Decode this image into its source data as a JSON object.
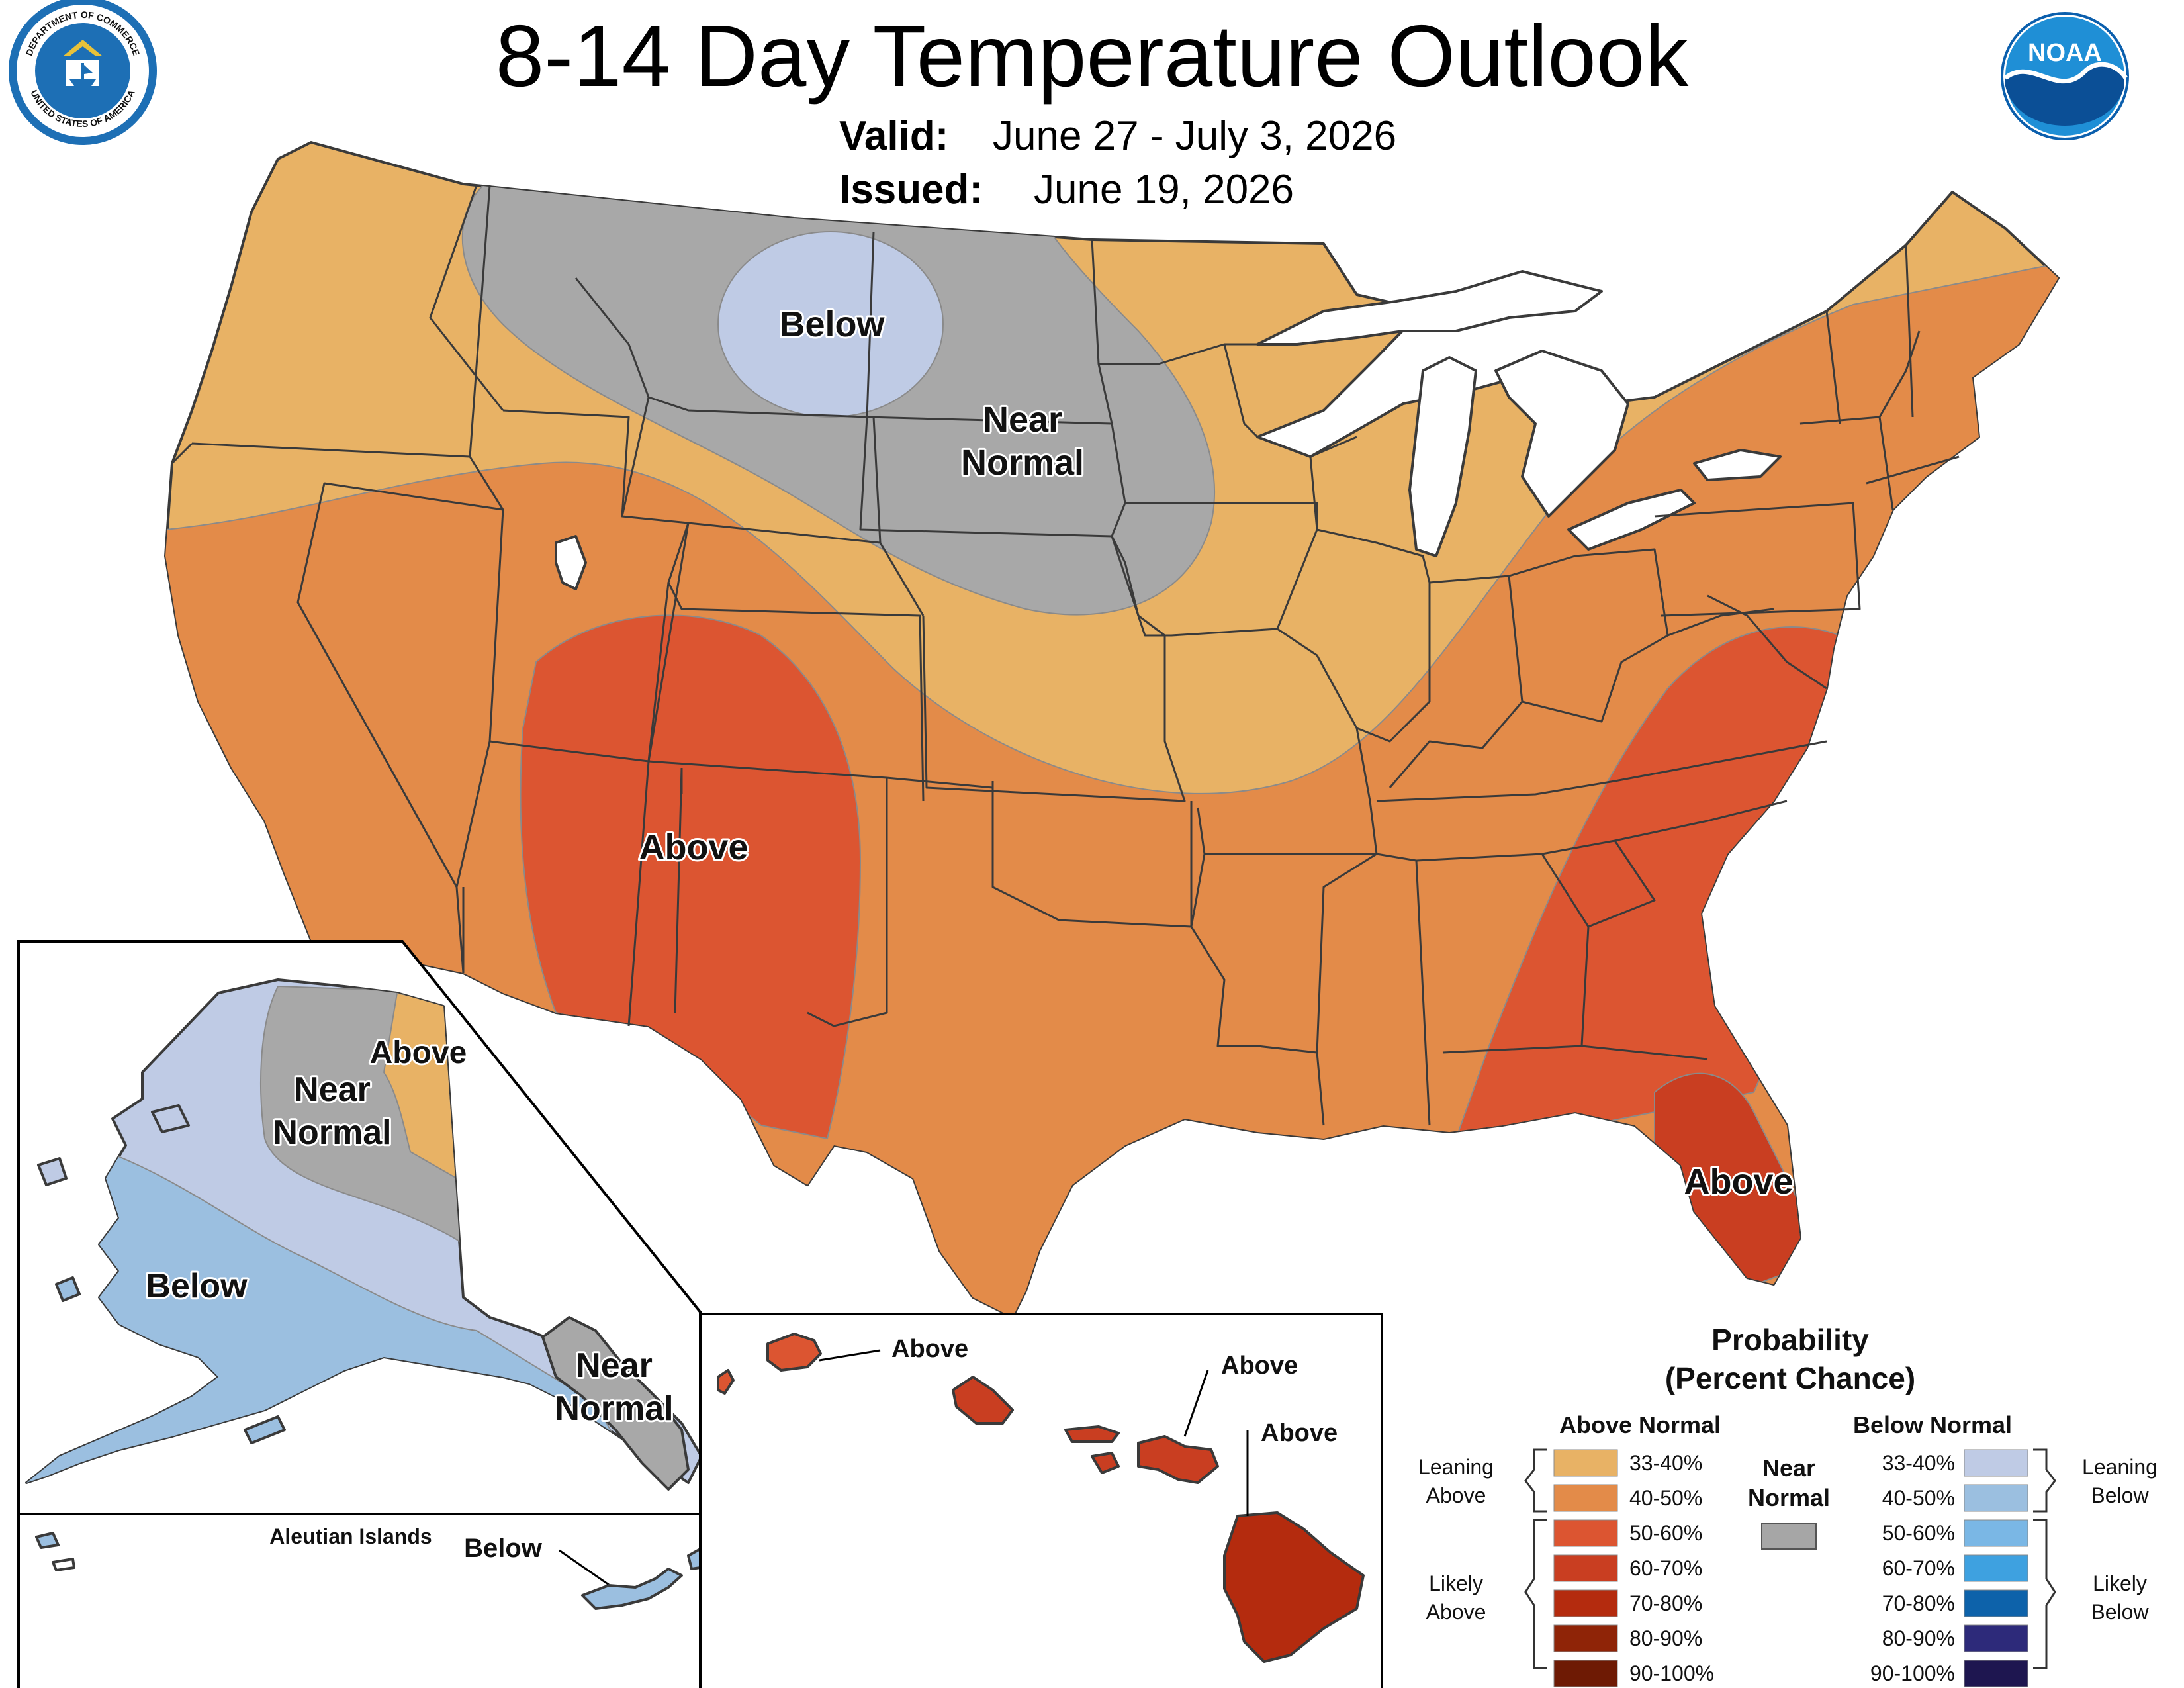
{
  "title": "8-14 Day Temperature Outlook",
  "valid_label": "Valid:",
  "valid_value": "June 27 - July 3, 2026",
  "issued_label": "Issued:",
  "issued_value": "June 19, 2026",
  "logos": {
    "doc_seal": "Department of Commerce seal",
    "doc_text_top": "DEPARTMENT OF COMMERCE",
    "doc_text_bottom": "UNITED STATES OF AMERICA",
    "noaa": "NOAA"
  },
  "colors": {
    "above_33_40": "#e8b265",
    "above_40_50": "#e38b49",
    "above_50_60": "#dc5531",
    "above_60_70": "#c93e21",
    "above_70_80": "#b42b0e",
    "above_80_90": "#8f2407",
    "above_90_100": "#6e1a04",
    "near_normal": "#a6a6a6",
    "below_33_40": "#bfcbe5",
    "below_40_50": "#9bbfe0",
    "below_50_60": "#7ab7e5",
    "below_60_70": "#3ea1e0",
    "below_70_80": "#0d62aa",
    "below_80_90": "#2d2a7a",
    "below_90_100": "#1e1650",
    "water": "#ffffff",
    "state_line": "#3a3a3a"
  },
  "map_labels": {
    "conus_below": "Below",
    "conus_near_1": "Near",
    "conus_near_2": "Normal",
    "conus_above_sw": "Above",
    "conus_above_se": "Above",
    "ak_above": "Above",
    "ak_near_1": "Near",
    "ak_near_2": "Normal",
    "ak_below": "Below",
    "ak_se_near_1": "Near",
    "ak_se_near_2": "Normal",
    "aleutian_title": "Aleutian Islands",
    "aleutian_below": "Below",
    "hi_above_1": "Above",
    "hi_above_2": "Above",
    "hi_above_3": "Above"
  },
  "legend": {
    "title_1": "Probability",
    "title_2": "(Percent Chance)",
    "above_header": "Above Normal",
    "below_header": "Below Normal",
    "near_1": "Near",
    "near_2": "Normal",
    "leaning_above_1": "Leaning",
    "leaning_above_2": "Above",
    "likely_above_1": "Likely",
    "likely_above_2": "Above",
    "leaning_below_1": "Leaning",
    "leaning_below_2": "Below",
    "likely_below_1": "Likely",
    "likely_below_2": "Below",
    "above_items": [
      {
        "label": "33-40%",
        "color": "#e8b265"
      },
      {
        "label": "40-50%",
        "color": "#e38b49"
      },
      {
        "label": "50-60%",
        "color": "#dc5531"
      },
      {
        "label": "60-70%",
        "color": "#c93e21"
      },
      {
        "label": "70-80%",
        "color": "#b42b0e"
      },
      {
        "label": "80-90%",
        "color": "#8f2407"
      },
      {
        "label": "90-100%",
        "color": "#6e1a04"
      }
    ],
    "below_items": [
      {
        "label": "33-40%",
        "color": "#bfcbe5"
      },
      {
        "label": "40-50%",
        "color": "#9bbfe0"
      },
      {
        "label": "50-60%",
        "color": "#7ab7e5"
      },
      {
        "label": "60-70%",
        "color": "#3ea1e0"
      },
      {
        "label": "70-80%",
        "color": "#0d62aa"
      },
      {
        "label": "80-90%",
        "color": "#2d2a7a"
      },
      {
        "label": "90-100%",
        "color": "#1e1650"
      }
    ],
    "near_color": "#a6a6a6"
  }
}
